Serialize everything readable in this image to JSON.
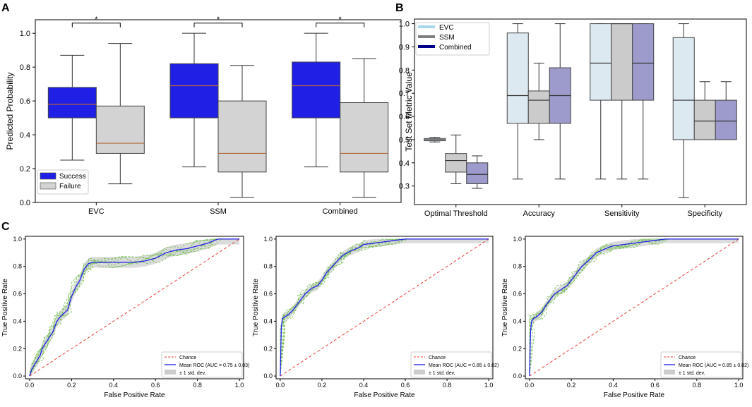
{
  "chart_data": [
    {
      "panel": "A",
      "type": "box",
      "title": "",
      "xlabel": "",
      "ylabel": "Predicted Probability",
      "ylim": [
        0,
        1.08
      ],
      "yticks": [
        "0.0",
        "0.2",
        "0.4",
        "0.6",
        "0.8",
        "1.0"
      ],
      "categories": [
        "EVC",
        "SSM",
        "Combined"
      ],
      "significance": [
        "*",
        "*",
        "*"
      ],
      "colors": {
        "Success": "#1f1fe6",
        "Failure": "#d3d3d3"
      },
      "series": [
        {
          "name": "Success",
          "boxes": [
            {
              "whislo": 0.25,
              "q1": 0.5,
              "med": 0.58,
              "q3": 0.68,
              "whishi": 0.87
            },
            {
              "whislo": 0.21,
              "q1": 0.5,
              "med": 0.69,
              "q3": 0.82,
              "whishi": 1.0
            },
            {
              "whislo": 0.21,
              "q1": 0.5,
              "med": 0.69,
              "q3": 0.83,
              "whishi": 1.0
            }
          ]
        },
        {
          "name": "Failure",
          "boxes": [
            {
              "whislo": 0.11,
              "q1": 0.29,
              "med": 0.35,
              "q3": 0.57,
              "whishi": 0.94
            },
            {
              "whislo": 0.03,
              "q1": 0.18,
              "med": 0.29,
              "q3": 0.6,
              "whishi": 0.81
            },
            {
              "whislo": 0.03,
              "q1": 0.18,
              "med": 0.29,
              "q3": 0.59,
              "whishi": 0.85
            }
          ]
        }
      ],
      "legend": [
        "Success",
        "Failure"
      ]
    },
    {
      "panel": "B",
      "type": "box",
      "title": "",
      "xlabel": "",
      "ylabel": "Test Set Metric Value",
      "ylim": [
        0.22,
        1.02
      ],
      "yticks": [
        "0.3",
        "0.4",
        "0.5",
        "0.6",
        "0.7",
        "0.8",
        "0.9",
        "1.0"
      ],
      "categories": [
        "Optimal Threshold",
        "Accuracy",
        "Sensitivity",
        "Specificity"
      ],
      "colors": {
        "EVC": "#dde9f1",
        "SSM": "#cbcbcb",
        "Combined": "#9d9bcb"
      },
      "legend_colors": {
        "EVC": "#a9d7ea",
        "SSM": "#808080",
        "Combined": "#00008b"
      },
      "series": [
        {
          "name": "EVC",
          "boxes": [
            {
              "whislo": 0.49,
              "q1": 0.495,
              "med": 0.5,
              "q3": 0.505,
              "whishi": 0.51
            },
            {
              "whislo": 0.33,
              "q1": 0.57,
              "med": 0.69,
              "q3": 0.96,
              "whishi": 1.0
            },
            {
              "whislo": 0.33,
              "q1": 0.67,
              "med": 0.83,
              "q3": 1.0,
              "whishi": 1.0
            },
            {
              "whislo": 0.25,
              "q1": 0.5,
              "med": 0.67,
              "q3": 0.94,
              "whishi": 1.0
            }
          ]
        },
        {
          "name": "SSM",
          "boxes": [
            {
              "whislo": 0.31,
              "q1": 0.36,
              "med": 0.41,
              "q3": 0.44,
              "whishi": 0.52
            },
            {
              "whislo": 0.5,
              "q1": 0.57,
              "med": 0.67,
              "q3": 0.71,
              "whishi": 0.83
            },
            {
              "whislo": 0.33,
              "q1": 0.67,
              "med": 1.0,
              "q3": 1.0,
              "whishi": 1.0
            },
            {
              "whislo": 0.5,
              "q1": 0.5,
              "med": 0.58,
              "q3": 0.67,
              "whishi": 0.75
            }
          ]
        },
        {
          "name": "Combined",
          "boxes": [
            {
              "whislo": 0.29,
              "q1": 0.31,
              "med": 0.35,
              "q3": 0.4,
              "whishi": 0.43
            },
            {
              "whislo": 0.33,
              "q1": 0.57,
              "med": 0.69,
              "q3": 0.81,
              "whishi": 1.0
            },
            {
              "whislo": 0.33,
              "q1": 0.67,
              "med": 0.83,
              "q3": 1.0,
              "whishi": 1.0
            },
            {
              "whislo": 0.5,
              "q1": 0.5,
              "med": 0.58,
              "q3": 0.67,
              "whishi": 0.75
            }
          ]
        }
      ],
      "legend": [
        "EVC",
        "SSM",
        "Combined"
      ]
    },
    {
      "panel": "C",
      "type": "line",
      "subplots": [
        {
          "xlabel": "False Positive Rate",
          "ylabel": "True Positive Rate",
          "xlim": [
            -0.02,
            1.02
          ],
          "ylim": [
            -0.02,
            1.02
          ],
          "ticks": [
            "0.0",
            "0.2",
            "0.4",
            "0.6",
            "0.8",
            "1.0"
          ],
          "legend": [
            "Chance",
            "Mean ROC (AUC = 0.75 ± 0.03)",
            "± 1 std. dev."
          ],
          "mean_roc": {
            "x": [
              0,
              0.01,
              0.03,
              0.05,
              0.06,
              0.08,
              0.11,
              0.13,
              0.15,
              0.18,
              0.2,
              0.22,
              0.24,
              0.26,
              0.28,
              0.3,
              0.35,
              0.4,
              0.45,
              0.5,
              0.55,
              0.6,
              0.65,
              0.7,
              0.75,
              0.8,
              0.85,
              0.88,
              0.9,
              0.95,
              1.0
            ],
            "y": [
              0,
              0.05,
              0.1,
              0.15,
              0.2,
              0.25,
              0.32,
              0.4,
              0.44,
              0.48,
              0.58,
              0.65,
              0.7,
              0.78,
              0.82,
              0.83,
              0.83,
              0.83,
              0.83,
              0.83,
              0.84,
              0.86,
              0.9,
              0.92,
              0.93,
              0.95,
              0.97,
              0.99,
              1.0,
              1.0,
              1.0
            ]
          },
          "std_band": 0.04
        },
        {
          "xlabel": "False Positive Rate",
          "ylabel": "True Positive Rate",
          "xlim": [
            -0.02,
            1.02
          ],
          "ylim": [
            -0.02,
            1.02
          ],
          "ticks": [
            "0.0",
            "0.2",
            "0.4",
            "0.6",
            "0.8",
            "1.0"
          ],
          "legend": [
            "Chance",
            "Mean ROC (AUC = 0.85 ± 0.02)",
            "± 1 std. dev."
          ],
          "mean_roc": {
            "x": [
              0,
              0.005,
              0.01,
              0.02,
              0.04,
              0.06,
              0.08,
              0.1,
              0.12,
              0.15,
              0.18,
              0.2,
              0.22,
              0.25,
              0.28,
              0.3,
              0.32,
              0.35,
              0.38,
              0.4,
              0.45,
              0.5,
              0.55,
              0.6,
              0.7,
              0.8,
              0.9,
              1.0
            ],
            "y": [
              0,
              0.35,
              0.42,
              0.43,
              0.45,
              0.48,
              0.52,
              0.56,
              0.6,
              0.64,
              0.66,
              0.7,
              0.75,
              0.8,
              0.85,
              0.88,
              0.9,
              0.92,
              0.94,
              0.96,
              0.97,
              0.98,
              0.99,
              1.0,
              1.0,
              1.0,
              1.0,
              1.0
            ]
          },
          "std_band": 0.03
        },
        {
          "xlabel": "False Positive Rate",
          "ylabel": "True Positive Rate",
          "xlim": [
            -0.02,
            1.02
          ],
          "ylim": [
            -0.02,
            1.02
          ],
          "ticks": [
            "0.0",
            "0.2",
            "0.4",
            "0.6",
            "0.8",
            "1.0"
          ],
          "legend": [
            "Chance",
            "Mean ROC (AUC = 0.85 ± 0.02)",
            "± 1 std. dev."
          ],
          "mean_roc": {
            "x": [
              0,
              0.005,
              0.01,
              0.02,
              0.04,
              0.06,
              0.08,
              0.1,
              0.12,
              0.15,
              0.18,
              0.2,
              0.22,
              0.25,
              0.28,
              0.3,
              0.32,
              0.35,
              0.38,
              0.4,
              0.45,
              0.5,
              0.55,
              0.6,
              0.65,
              0.7,
              0.8,
              0.9,
              1.0
            ],
            "y": [
              0,
              0.33,
              0.4,
              0.42,
              0.44,
              0.47,
              0.52,
              0.56,
              0.6,
              0.63,
              0.66,
              0.7,
              0.74,
              0.8,
              0.84,
              0.87,
              0.9,
              0.92,
              0.94,
              0.95,
              0.96,
              0.97,
              0.98,
              0.99,
              1.0,
              1.0,
              1.0,
              1.0,
              1.0
            ]
          },
          "std_band": 0.03
        }
      ]
    }
  ],
  "colors": {
    "chance": "#e8403a",
    "mean_roc": "#1f1fe6",
    "fold_curves": "#6fbf4a",
    "std_fill": "#cccccc",
    "axis": "#000000",
    "median": "#b5673a"
  }
}
